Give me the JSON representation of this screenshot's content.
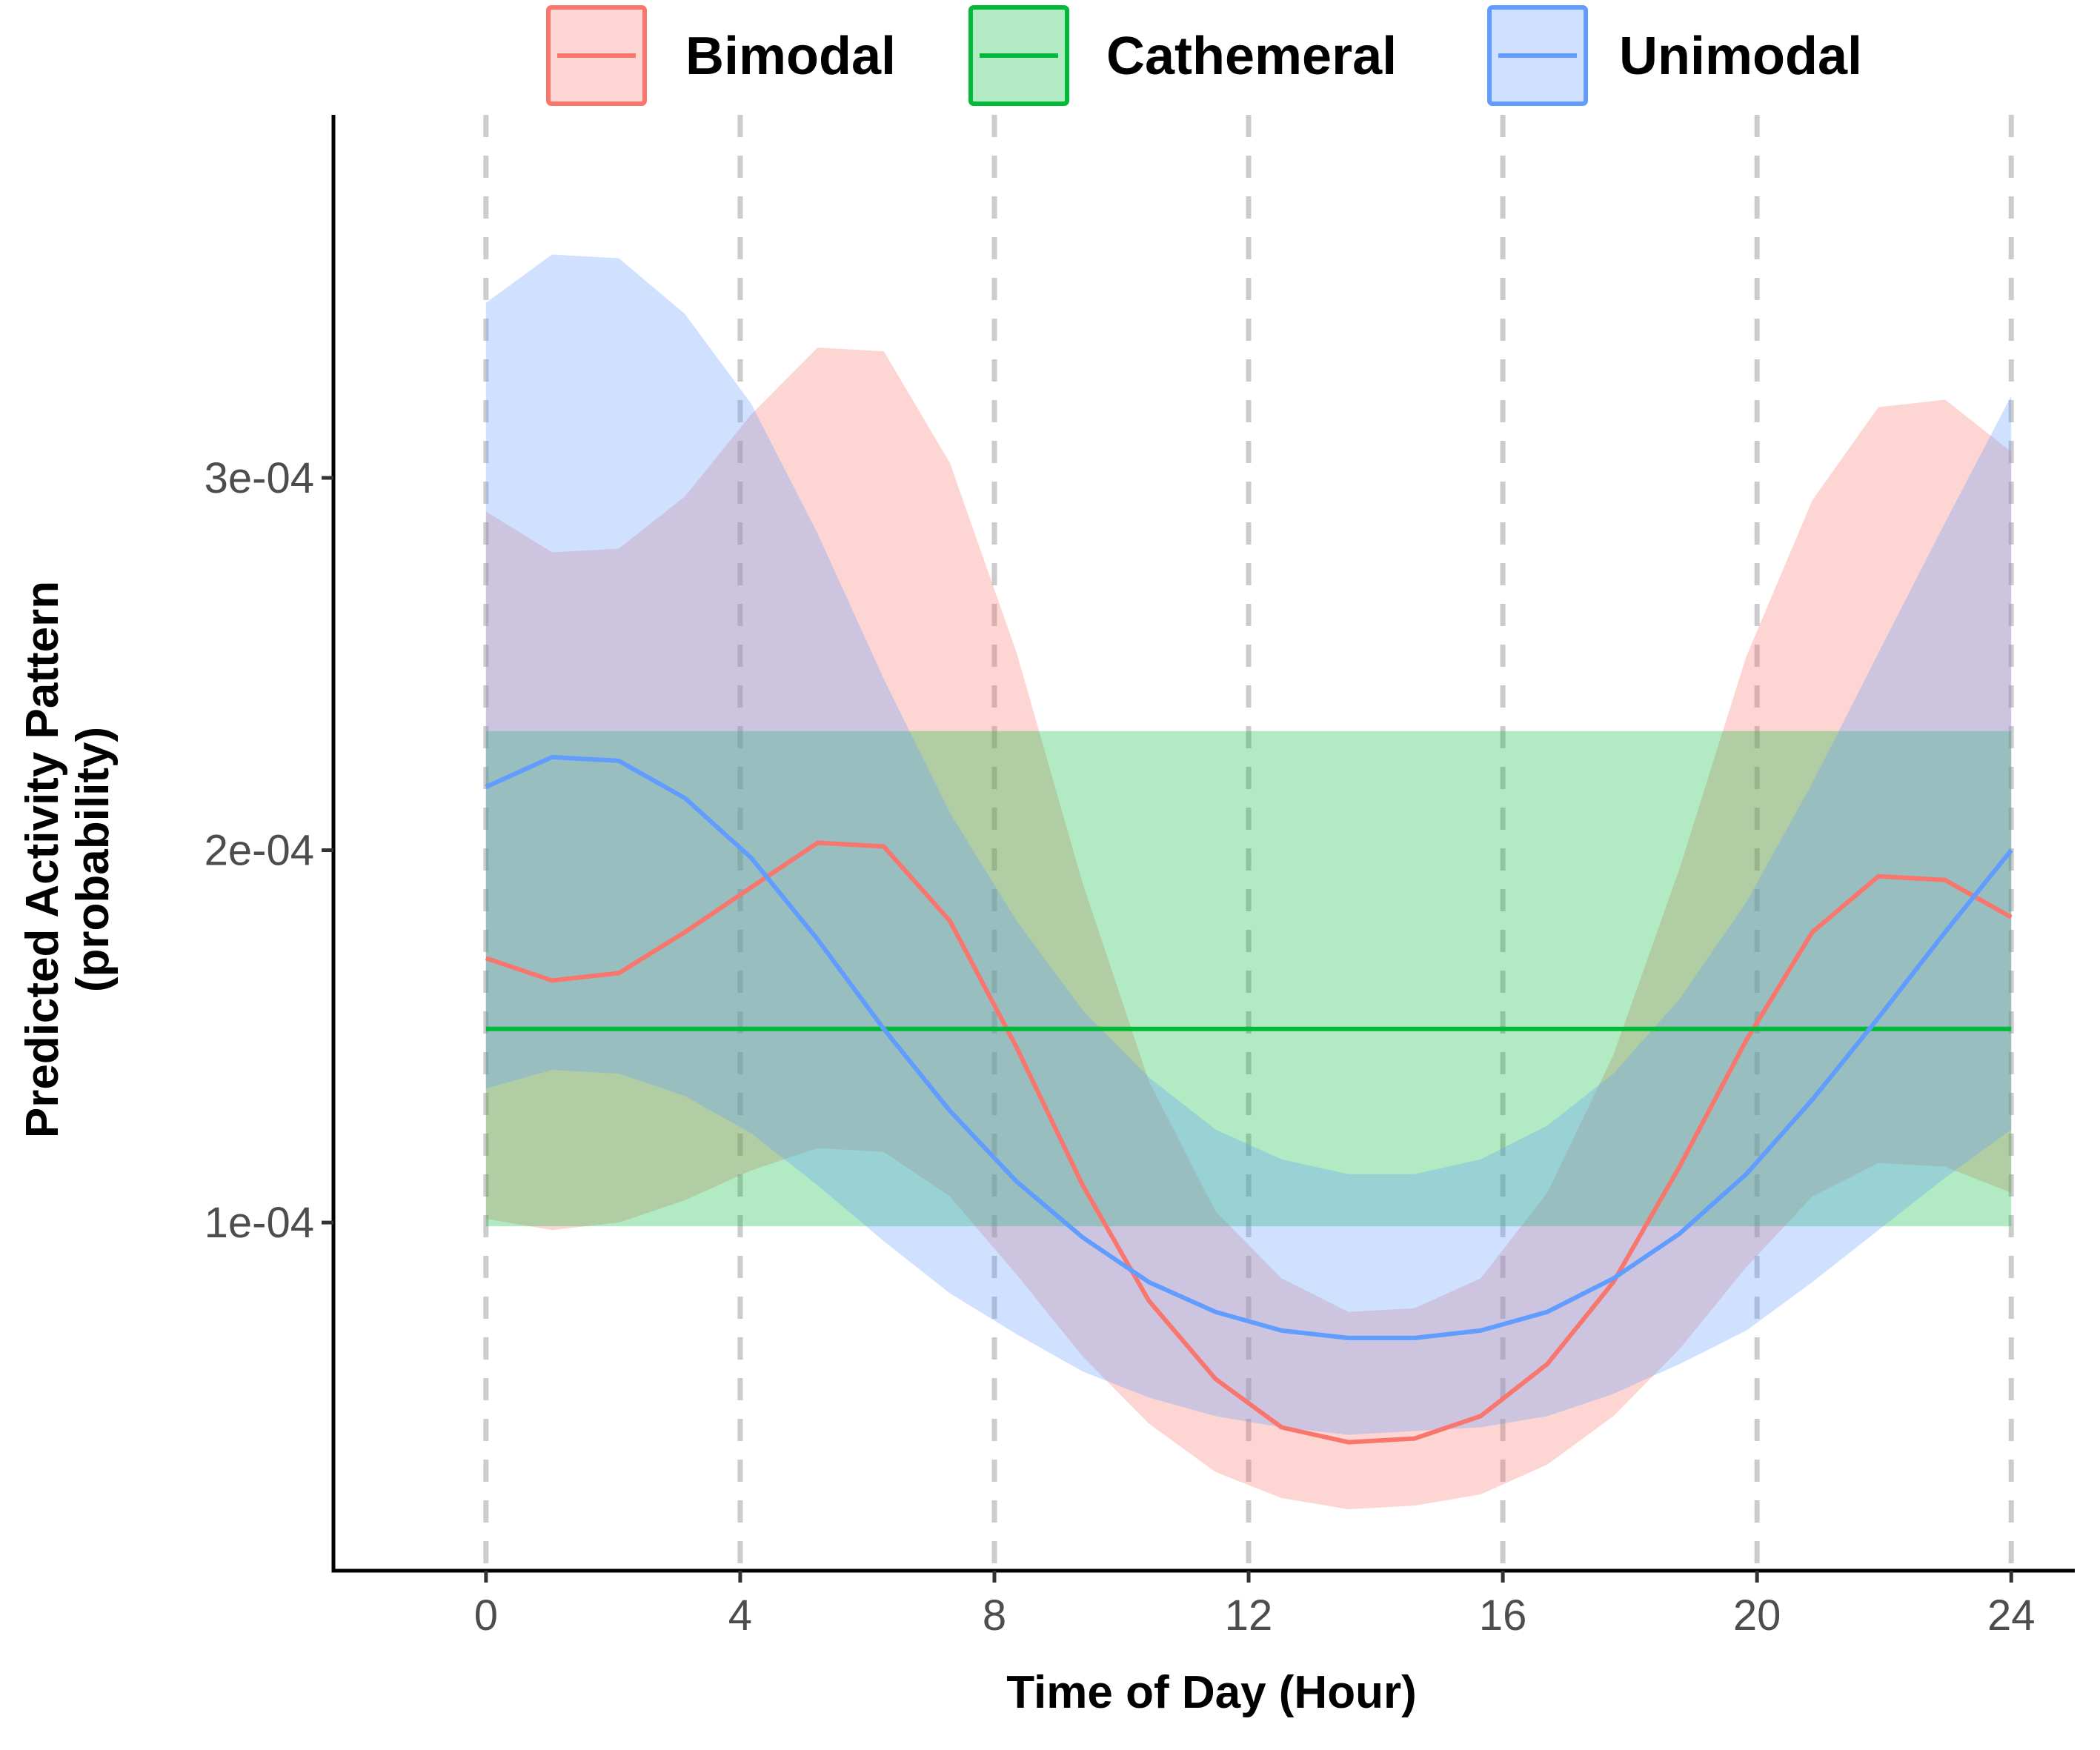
{
  "chart_data": {
    "type": "line",
    "title": "",
    "xlabel": "Time of Day (Hour)",
    "ylabel_lines": [
      "Predicted Activity Pattern",
      "(probability)"
    ],
    "x_ticks": [
      0,
      4,
      8,
      12,
      16,
      20,
      24
    ],
    "x_tick_labels": [
      "0",
      "4",
      "8",
      "12",
      "16",
      "20",
      "24"
    ],
    "y_ticks": [
      0.0001,
      0.0002,
      0.0003
    ],
    "y_tick_labels": [
      "1e-04",
      "2e-04",
      "3e-04"
    ],
    "xlim": [
      -2.4,
      25.0
    ],
    "ylim": [
      6.5e-06,
      0.0003975
    ],
    "vertical_gridlines": [
      0,
      4,
      8,
      12,
      16,
      20,
      24
    ],
    "grid": "vertical dashed",
    "legend_position": "top",
    "x": [
      0,
      1.04,
      2.09,
      3.13,
      4.17,
      5.22,
      6.26,
      7.3,
      8.35,
      9.39,
      10.43,
      11.48,
      12.52,
      13.57,
      14.61,
      15.65,
      16.7,
      17.74,
      18.78,
      19.83,
      20.87,
      21.91,
      22.96,
      24
    ],
    "series": [
      {
        "name": "Bimodal",
        "color": "#f8766d",
        "fill": "#f8766d",
        "values": [
          0.000171,
          0.000165,
          0.000167,
          0.000178,
          0.00019,
          0.000202,
          0.000201,
          0.000181,
          0.000147,
          0.00011,
          7.9e-05,
          5.8e-05,
          4.5e-05,
          4.1e-05,
          4.2e-05,
          4.8e-05,
          6.2e-05,
          8.4e-05,
          0.000115,
          0.000149,
          0.000178,
          0.000193,
          0.000192,
          0.000182
        ],
        "lower": [
          0.000101,
          9.8e-05,
          0.0001,
          0.000106,
          0.000114,
          0.00012,
          0.000119,
          0.000107,
          8.6e-05,
          6.4e-05,
          4.6e-05,
          3.3e-05,
          2.6e-05,
          2.3e-05,
          2.4e-05,
          2.7e-05,
          3.5e-05,
          4.8e-05,
          6.6e-05,
          8.8e-05,
          0.000107,
          0.000116,
          0.000115,
          0.000108
        ],
        "upper": [
          0.000291,
          0.00028,
          0.000281,
          0.000295,
          0.000317,
          0.000335,
          0.000334,
          0.000304,
          0.000253,
          0.000191,
          0.000138,
          0.000103,
          8.5e-05,
          7.6e-05,
          7.7e-05,
          8.5e-05,
          0.000108,
          0.000145,
          0.000195,
          0.000252,
          0.000294,
          0.000319,
          0.000321,
          0.000307
        ]
      },
      {
        "name": "Cathemeral",
        "color": "#00ba38",
        "fill": "#00ba38",
        "values": [
          0.000152,
          0.000152,
          0.000152,
          0.000152,
          0.000152,
          0.000152,
          0.000152,
          0.000152,
          0.000152,
          0.000152,
          0.000152,
          0.000152,
          0.000152,
          0.000152,
          0.000152,
          0.000152,
          0.000152,
          0.000152,
          0.000152,
          0.000152,
          0.000152,
          0.000152,
          0.000152,
          0.000152
        ],
        "lower": [
          9.9e-05,
          9.9e-05,
          9.9e-05,
          9.9e-05,
          9.9e-05,
          9.9e-05,
          9.9e-05,
          9.9e-05,
          9.9e-05,
          9.9e-05,
          9.9e-05,
          9.9e-05,
          9.9e-05,
          9.9e-05,
          9.9e-05,
          9.9e-05,
          9.9e-05,
          9.9e-05,
          9.9e-05,
          9.9e-05,
          9.9e-05,
          9.9e-05,
          9.9e-05,
          9.9e-05
        ],
        "upper": [
          0.000232,
          0.000232,
          0.000232,
          0.000232,
          0.000232,
          0.000232,
          0.000232,
          0.000232,
          0.000232,
          0.000232,
          0.000232,
          0.000232,
          0.000232,
          0.000232,
          0.000232,
          0.000232,
          0.000232,
          0.000232,
          0.000232,
          0.000232,
          0.000232,
          0.000232,
          0.000232,
          0.000232
        ]
      },
      {
        "name": "Unimodal",
        "color": "#619cff",
        "fill": "#619cff",
        "values": [
          0.000217,
          0.000225,
          0.000224,
          0.000214,
          0.000198,
          0.000176,
          0.000152,
          0.00013,
          0.000111,
          9.6e-05,
          8.4e-05,
          7.6e-05,
          7.1e-05,
          6.9e-05,
          6.9e-05,
          7.1e-05,
          7.6e-05,
          8.5e-05,
          9.7e-05,
          0.000113,
          0.000133,
          0.000155,
          0.000178,
          0.0002
        ],
        "lower": [
          0.000136,
          0.000141,
          0.00014,
          0.000134,
          0.000124,
          0.00011,
          9.5e-05,
          8.1e-05,
          7e-05,
          6e-05,
          5.3e-05,
          4.8e-05,
          4.5e-05,
          4.3e-05,
          4.4e-05,
          4.5e-05,
          4.8e-05,
          5.4e-05,
          6.2e-05,
          7.1e-05,
          8.4e-05,
          9.8e-05,
          0.000112,
          0.000125
        ],
        "upper": [
          0.000347,
          0.00036,
          0.000359,
          0.000344,
          0.00032,
          0.000285,
          0.000246,
          0.00021,
          0.000181,
          0.000157,
          0.000139,
          0.000125,
          0.000117,
          0.000113,
          0.000113,
          0.000117,
          0.000126,
          0.00014,
          0.00016,
          0.000186,
          0.000218,
          0.000253,
          0.000288,
          0.000322
        ]
      }
    ]
  }
}
